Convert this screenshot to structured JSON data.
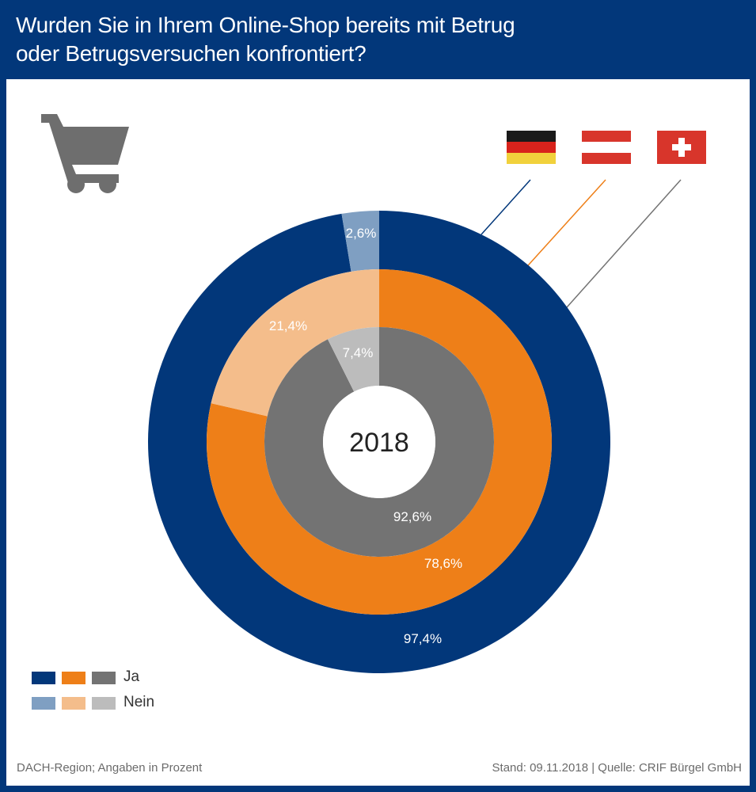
{
  "title_lines": [
    "Wurden Sie in Ihrem Online-Shop bereits mit Betrug",
    "oder Betrugsversuchen konfrontiert?"
  ],
  "center_label": "2018",
  "footer": {
    "left": "DACH-Region; Angaben in Prozent",
    "right": "Stand: 09.11.2018 | Quelle: CRIF Bürgel GmbH"
  },
  "icons": {
    "cart": "shopping-cart-icon",
    "flags": [
      "germany-flag-icon",
      "austria-flag-icon",
      "switzerland-flag-icon"
    ]
  },
  "colors": {
    "background": "#02377a",
    "de_ja": "#02377a",
    "de_nein": "#7f9fc2",
    "at_ja": "#ee7f18",
    "at_nein": "#f4bd8b",
    "ch_ja": "#737373",
    "ch_nein": "#bcbcbc",
    "cart": "#6e6e6e"
  },
  "legend": {
    "ja": "Ja",
    "nein": "Nein"
  },
  "chart_data": {
    "type": "pie",
    "subtype": "nested-donut",
    "categories": [
      "Ja",
      "Nein"
    ],
    "series": [
      {
        "ring": "outer",
        "values": [
          97.4,
          2.6
        ],
        "labels": [
          "97,4%",
          "2,6%"
        ]
      },
      {
        "ring": "middle",
        "values": [
          78.6,
          21.4
        ],
        "labels": [
          "78,6%",
          "21,4%"
        ]
      },
      {
        "ring": "inner",
        "values": [
          92.6,
          7.4
        ],
        "labels": [
          "92,6%",
          "7,4%"
        ]
      }
    ]
  }
}
